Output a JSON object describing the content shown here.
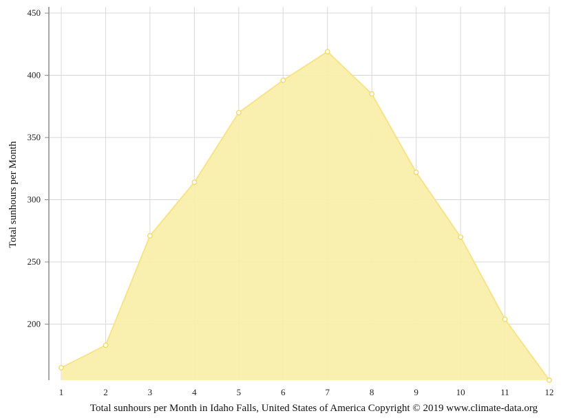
{
  "chart_data": {
    "type": "area",
    "title": "",
    "xlabel": "Total sunhours per Month in Idaho Falls, United States of America Copyright © 2019 www.climate-data.org",
    "ylabel": "Total sunhours per Month",
    "categories": [
      "1",
      "2",
      "3",
      "4",
      "5",
      "6",
      "7",
      "8",
      "9",
      "10",
      "11",
      "12"
    ],
    "series": [
      {
        "values": [
          165,
          183,
          271,
          314,
          370,
          396,
          419,
          385,
          322,
          270,
          204,
          155
        ]
      }
    ],
    "ylim": [
      155,
      455
    ],
    "yticks": [
      "200",
      "250",
      "300",
      "350",
      "400",
      "450"
    ],
    "grid": true,
    "legend": "none",
    "colors": {
      "fill": "#f9eeaa",
      "line": "#f7e38a",
      "marker_stroke": "#f2d85f",
      "marker_fill": "#ffffff",
      "grid": "#d8d8d8",
      "axis": "#888888"
    }
  }
}
